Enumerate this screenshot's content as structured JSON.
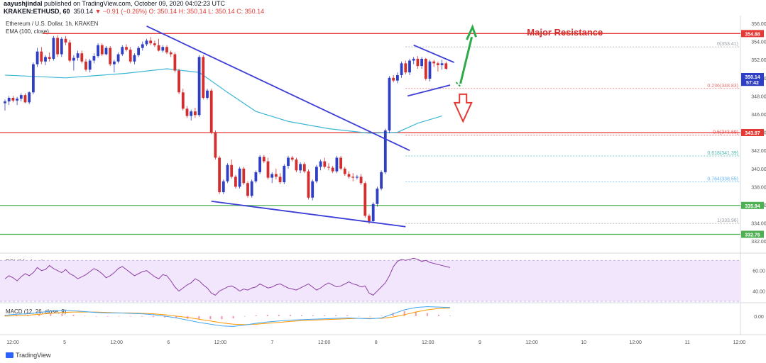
{
  "header": {
    "user": "aayushjindal",
    "published_text": "published on TradingView.com, October 09, 2020 04:02:23 UTC",
    "symbol": "KRAKEN:ETHUSD, 60",
    "last_price": "350.14",
    "change": "▼ −0.91 (−0.26%)",
    "ohlc": "O: 350.14 H: 350.14 L: 350.14 C: 350.14"
  },
  "legend": {
    "title": "Ethereum / U.S. Dollar, 1h, KRAKEN",
    "ema": "EMA (100, close)",
    "rsi": "RSI (14, close)",
    "macd": "MACD (12, 26, close, 9)"
  },
  "annotation": {
    "text": "Major Resistance",
    "color": "#d32f2f"
  },
  "colors": {
    "up": "#2f3fc4",
    "down": "#d32f2f",
    "ema": "#3fb7d6",
    "trend": "#3b3fd8",
    "support": "#4caf50",
    "resistance": "#e53935",
    "arrow_up": "#2eaa4a",
    "arrow_down": "#e53935"
  },
  "branding": {
    "name": "TradingView",
    "icon": "tradingview-logo-icon"
  },
  "chart_data": [
    {
      "type": "candlestick",
      "title": "Ethereum / U.S. Dollar, 1h, KRAKEN",
      "ylim": [
        331,
        356
      ],
      "y_ticks": [
        "356.00",
        "354.00",
        "352.00",
        "350.00",
        "348.00",
        "346.00",
        "344.00",
        "342.00",
        "340.00",
        "338.00",
        "336.00",
        "334.00",
        "332.00"
      ],
      "x_ticks": [
        "12:00",
        "5",
        "12:00",
        "6",
        "12:00",
        "7",
        "12:00",
        "8",
        "12:00",
        "9",
        "12:00",
        "10",
        "12:00",
        "11",
        "12:00"
      ],
      "price_badges": [
        {
          "label": "354.88",
          "value": 354.88,
          "color": "#e53935"
        },
        {
          "label": "350.14",
          "value": 350.14,
          "color": "#2f3fc4"
        },
        {
          "label": "57:42",
          "value": 349.5,
          "color": "#2f3fc4"
        },
        {
          "label": "343.97",
          "value": 343.97,
          "color": "#e53935"
        },
        {
          "label": "335.94",
          "value": 335.94,
          "color": "#4caf50"
        },
        {
          "label": "332.76",
          "value": 332.76,
          "color": "#4caf50"
        }
      ],
      "horizontal_levels": [
        {
          "value": 354.88,
          "role": "resistance"
        },
        {
          "value": 343.97,
          "role": "resistance"
        },
        {
          "value": 335.94,
          "role": "support"
        },
        {
          "value": 332.76,
          "role": "support"
        }
      ],
      "fibonacci": [
        {
          "label": "0(353.41)",
          "value": 353.41
        },
        {
          "label": "0.236(348.83)",
          "value": 348.83
        },
        {
          "label": "0.5(343.69)",
          "value": 343.69
        },
        {
          "label": "0.618(341.39)",
          "value": 341.39
        },
        {
          "label": "0.764(338.55)",
          "value": 338.55
        },
        {
          "label": "1(333.96)",
          "value": 333.96
        }
      ],
      "candles": [
        [
          347.2,
          347.6,
          346.4,
          347.4
        ],
        [
          347.4,
          348.0,
          347.0,
          347.8
        ],
        [
          347.8,
          348.0,
          347.3,
          347.5
        ],
        [
          347.5,
          347.9,
          347.0,
          347.7
        ],
        [
          347.7,
          348.3,
          347.4,
          348.1
        ],
        [
          348.1,
          348.3,
          347.2,
          347.3
        ],
        [
          347.3,
          348.5,
          347.1,
          348.4
        ],
        [
          348.4,
          351.7,
          348.2,
          351.5
        ],
        [
          351.5,
          353.3,
          351.2,
          352.9
        ],
        [
          352.9,
          353.4,
          351.5,
          351.8
        ],
        [
          351.8,
          352.5,
          351.4,
          352.3
        ],
        [
          352.3,
          352.8,
          351.8,
          352.1
        ],
        [
          352.1,
          354.6,
          351.9,
          354.4
        ],
        [
          354.4,
          354.7,
          352.3,
          352.6
        ],
        [
          352.6,
          354.5,
          352.3,
          354.3
        ],
        [
          354.3,
          354.6,
          353.6,
          353.9
        ],
        [
          353.9,
          354.2,
          351.7,
          351.9
        ],
        [
          351.9,
          352.5,
          350.8,
          352.2
        ],
        [
          352.2,
          353.0,
          351.9,
          352.7
        ],
        [
          352.7,
          353.0,
          351.6,
          351.8
        ],
        [
          351.8,
          352.1,
          350.7,
          350.9
        ],
        [
          350.9,
          352.1,
          350.6,
          351.9
        ],
        [
          351.9,
          352.7,
          351.6,
          352.4
        ],
        [
          352.4,
          353.8,
          352.2,
          353.6
        ],
        [
          353.6,
          353.8,
          352.4,
          352.6
        ],
        [
          352.6,
          353.5,
          352.5,
          353.3
        ],
        [
          353.3,
          353.5,
          351.3,
          351.5
        ],
        [
          351.5,
          352.0,
          350.6,
          351.8
        ],
        [
          351.8,
          352.8,
          351.6,
          352.6
        ],
        [
          352.6,
          353.6,
          352.4,
          353.4
        ],
        [
          353.4,
          353.7,
          352.9,
          353.1
        ],
        [
          353.1,
          353.4,
          351.6,
          351.8
        ],
        [
          351.8,
          352.7,
          351.5,
          352.5
        ],
        [
          352.5,
          353.5,
          352.3,
          353.3
        ],
        [
          353.3,
          354.0,
          353.0,
          353.7
        ],
        [
          353.7,
          354.3,
          353.5,
          354.1
        ],
        [
          354.1,
          354.5,
          353.6,
          353.8
        ],
        [
          353.8,
          354.1,
          353.4,
          353.6
        ],
        [
          353.6,
          354.3,
          352.9,
          353.0
        ],
        [
          353.0,
          353.6,
          352.8,
          353.4
        ],
        [
          353.4,
          353.6,
          352.6,
          352.8
        ],
        [
          352.8,
          353.0,
          352.3,
          352.6
        ],
        [
          352.6,
          352.8,
          350.6,
          350.8
        ],
        [
          350.8,
          351.0,
          348.2,
          348.4
        ],
        [
          348.4,
          348.8,
          346.4,
          346.6
        ],
        [
          346.6,
          346.9,
          345.6,
          345.8
        ],
        [
          345.8,
          346.5,
          345.3,
          346.3
        ],
        [
          346.3,
          346.7,
          345.6,
          345.9
        ],
        [
          345.9,
          352.5,
          345.7,
          352.3
        ],
        [
          352.3,
          352.5,
          347.6,
          347.8
        ],
        [
          347.8,
          348.8,
          347.6,
          348.6
        ],
        [
          348.6,
          348.8,
          343.8,
          344.0
        ],
        [
          344.0,
          344.2,
          341.0,
          341.2
        ],
        [
          341.2,
          341.4,
          337.2,
          337.4
        ],
        [
          337.4,
          338.8,
          337.2,
          338.6
        ],
        [
          338.6,
          340.6,
          338.4,
          340.4
        ],
        [
          340.4,
          341.0,
          338.9,
          339.1
        ],
        [
          339.1,
          339.3,
          337.8,
          338.0
        ],
        [
          338.0,
          340.2,
          337.8,
          340.0
        ],
        [
          340.0,
          340.2,
          338.2,
          338.4
        ],
        [
          338.4,
          338.6,
          336.8,
          337.0
        ],
        [
          337.0,
          338.8,
          336.8,
          338.6
        ],
        [
          338.6,
          339.8,
          338.4,
          339.6
        ],
        [
          339.6,
          341.5,
          339.4,
          341.3
        ],
        [
          341.3,
          341.5,
          340.6,
          340.8
        ],
        [
          340.8,
          341.2,
          338.8,
          339.0
        ],
        [
          339.0,
          339.6,
          338.4,
          339.4
        ],
        [
          339.4,
          340.0,
          338.8,
          339.1
        ],
        [
          339.1,
          339.5,
          338.3,
          338.5
        ],
        [
          338.5,
          340.5,
          338.3,
          340.3
        ],
        [
          340.3,
          341.4,
          340.0,
          341.2
        ],
        [
          341.2,
          341.4,
          340.8,
          341.0
        ],
        [
          341.0,
          341.2,
          339.6,
          339.8
        ],
        [
          339.8,
          340.7,
          339.5,
          340.5
        ],
        [
          340.5,
          340.7,
          339.5,
          339.7
        ],
        [
          339.7,
          339.9,
          336.6,
          336.8
        ],
        [
          336.8,
          338.8,
          336.5,
          338.6
        ],
        [
          338.6,
          340.4,
          338.4,
          340.2
        ],
        [
          340.2,
          341.0,
          339.8,
          340.8
        ],
        [
          340.8,
          341.2,
          340.0,
          340.2
        ],
        [
          340.2,
          340.6,
          339.8,
          340.1
        ],
        [
          340.1,
          340.3,
          339.5,
          339.7
        ],
        [
          339.7,
          341.4,
          339.5,
          341.2
        ],
        [
          341.2,
          341.4,
          339.8,
          340.0
        ],
        [
          340.0,
          340.2,
          339.2,
          339.4
        ],
        [
          339.4,
          339.7,
          338.9,
          339.1
        ],
        [
          339.1,
          339.5,
          338.6,
          339.0
        ],
        [
          339.0,
          339.3,
          338.8,
          339.1
        ],
        [
          339.1,
          339.4,
          338.2,
          338.4
        ],
        [
          338.4,
          338.6,
          334.6,
          334.8
        ],
        [
          334.8,
          335.0,
          333.9,
          334.2
        ],
        [
          334.2,
          336.3,
          334.0,
          336.1
        ],
        [
          336.1,
          338.0,
          335.8,
          337.8
        ],
        [
          337.8,
          339.8,
          337.6,
          339.6
        ],
        [
          339.6,
          344.4,
          339.4,
          344.2
        ],
        [
          344.2,
          350.2,
          343.9,
          350.0
        ],
        [
          350.0,
          350.3,
          349.5,
          349.7
        ],
        [
          349.7,
          350.6,
          349.4,
          350.3
        ],
        [
          350.3,
          351.8,
          350.0,
          351.6
        ],
        [
          351.6,
          351.9,
          350.4,
          350.6
        ],
        [
          350.6,
          352.1,
          350.3,
          351.9
        ],
        [
          351.9,
          352.3,
          351.5,
          352.1
        ],
        [
          352.1,
          352.4,
          351.0,
          351.3
        ],
        [
          351.3,
          352.3,
          351.0,
          352.1
        ],
        [
          352.1,
          352.2,
          349.7,
          349.9
        ],
        [
          349.9,
          352.0,
          349.6,
          351.8
        ],
        [
          351.8,
          352.0,
          351.2,
          351.6
        ],
        [
          351.6,
          351.8,
          350.7,
          351.4
        ],
        [
          351.4,
          352.0,
          350.9,
          351.6
        ],
        [
          351.6,
          351.8,
          350.9,
          351.0
        ]
      ],
      "ema_points": [
        [
          0,
          350.3
        ],
        [
          15,
          350.0
        ],
        [
          30,
          350.5
        ],
        [
          40,
          351.0
        ],
        [
          48,
          350.6
        ],
        [
          55,
          348.4
        ],
        [
          62,
          346.3
        ],
        [
          70,
          345.2
        ],
        [
          80,
          344.4
        ],
        [
          90,
          343.9
        ],
        [
          97,
          344.0
        ],
        [
          102,
          345.0
        ],
        [
          108,
          345.8
        ]
      ],
      "trend_lines": [
        {
          "from": [
            35,
            355.7
          ],
          "to": [
            100,
            342.0
          ],
          "role": "falling trendline"
        },
        {
          "from": [
            51,
            336.4
          ],
          "to": [
            99,
            333.6
          ],
          "role": "lower channel"
        },
        {
          "from": [
            99.5,
            348.0
          ],
          "to": [
            110,
            349.2
          ],
          "role": "triangle lower"
        },
        {
          "from": [
            101,
            353.6
          ],
          "to": [
            111,
            351.7
          ],
          "role": "triangle upper"
        }
      ]
    },
    {
      "type": "line",
      "title": "RSI (14, close)",
      "ylim": [
        30,
        75
      ],
      "y_ticks": [
        "60.00",
        "40.00"
      ],
      "band": [
        30,
        70
      ],
      "values": [
        52,
        55,
        53,
        50,
        54,
        57,
        55,
        58,
        63,
        60,
        61,
        65,
        62,
        60,
        58,
        61,
        57,
        55,
        52,
        54,
        56,
        59,
        62,
        60,
        57,
        53,
        55,
        58,
        62,
        64,
        61,
        58,
        55,
        57,
        59,
        60,
        57,
        54,
        52,
        56,
        55,
        50,
        44,
        40,
        43,
        46,
        48,
        52,
        50,
        46,
        43,
        38,
        36,
        40,
        42,
        44,
        45,
        43,
        40,
        42,
        41,
        43,
        44,
        47,
        45,
        43,
        44,
        46,
        47,
        45,
        43,
        42,
        41,
        43,
        45,
        47,
        44,
        41,
        43,
        46,
        48,
        46,
        44,
        45,
        47,
        49,
        47,
        46,
        44,
        45,
        38,
        36,
        40,
        44,
        48,
        55,
        64,
        69,
        71,
        70,
        71,
        72,
        71,
        69,
        70,
        68,
        67,
        66,
        65,
        64,
        63
      ]
    },
    {
      "type": "line",
      "title": "MACD (12, 26, close, 9)",
      "ylim": [
        -3.5,
        2.5
      ],
      "y_ticks": [
        "0.00"
      ],
      "macd": [
        0.2,
        0.4,
        0.5,
        0.8,
        1.1,
        1.3,
        1.2,
        1.0,
        0.8,
        0.7,
        0.7,
        0.6,
        0.5,
        0.3,
        0.0,
        -0.4,
        -0.9,
        -1.4,
        -1.8,
        -2.2,
        -2.3,
        -2.0,
        -1.6,
        -1.3,
        -1.1,
        -0.9,
        -0.8,
        -0.7,
        -0.6,
        -0.5,
        -0.4,
        -0.5,
        -0.6,
        -0.4,
        0.5,
        1.4,
        1.9,
        2.1,
        2.0,
        1.9
      ],
      "signal": [
        0.0,
        0.1,
        0.2,
        0.4,
        0.6,
        0.8,
        0.9,
        0.9,
        0.9,
        0.8,
        0.7,
        0.7,
        0.6,
        0.5,
        0.3,
        0.0,
        -0.3,
        -0.7,
        -1.1,
        -1.5,
        -1.8,
        -1.9,
        -1.8,
        -1.6,
        -1.4,
        -1.2,
        -1.0,
        -0.9,
        -0.8,
        -0.7,
        -0.6,
        -0.5,
        -0.5,
        -0.5,
        -0.2,
        0.3,
        0.9,
        1.4,
        1.7,
        1.8
      ]
    }
  ]
}
